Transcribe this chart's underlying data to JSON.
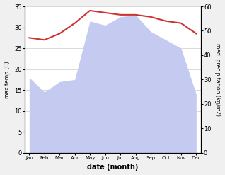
{
  "months": [
    "Jan",
    "Feb",
    "Mar",
    "Apr",
    "May",
    "Jun",
    "Jul",
    "Aug",
    "Sep",
    "Oct",
    "Nov",
    "Dec"
  ],
  "temp_max": [
    27.5,
    27.0,
    28.5,
    31.0,
    34.0,
    33.5,
    33.0,
    33.0,
    32.5,
    31.5,
    31.0,
    28.5
  ],
  "precipitation": [
    18.0,
    14.5,
    17.0,
    17.5,
    31.5,
    30.5,
    32.5,
    33.0,
    29.0,
    27.0,
    25.0,
    14.0
  ],
  "temp_color": "#cc3333",
  "precip_fill_color": "#c5cbf0",
  "temp_ylim": [
    0,
    35
  ],
  "precip_ylim": [
    0,
    60
  ],
  "temp_yticks": [
    0,
    5,
    10,
    15,
    20,
    25,
    30,
    35
  ],
  "precip_yticks": [
    0,
    10,
    20,
    30,
    40,
    50,
    60
  ],
  "xlabel": "date (month)",
  "ylabel_left": "max temp (C)",
  "ylabel_right": "med. precipitation (kg/m2)",
  "bg_color": "#f0f0f0",
  "plot_bg_color": "#ffffff"
}
